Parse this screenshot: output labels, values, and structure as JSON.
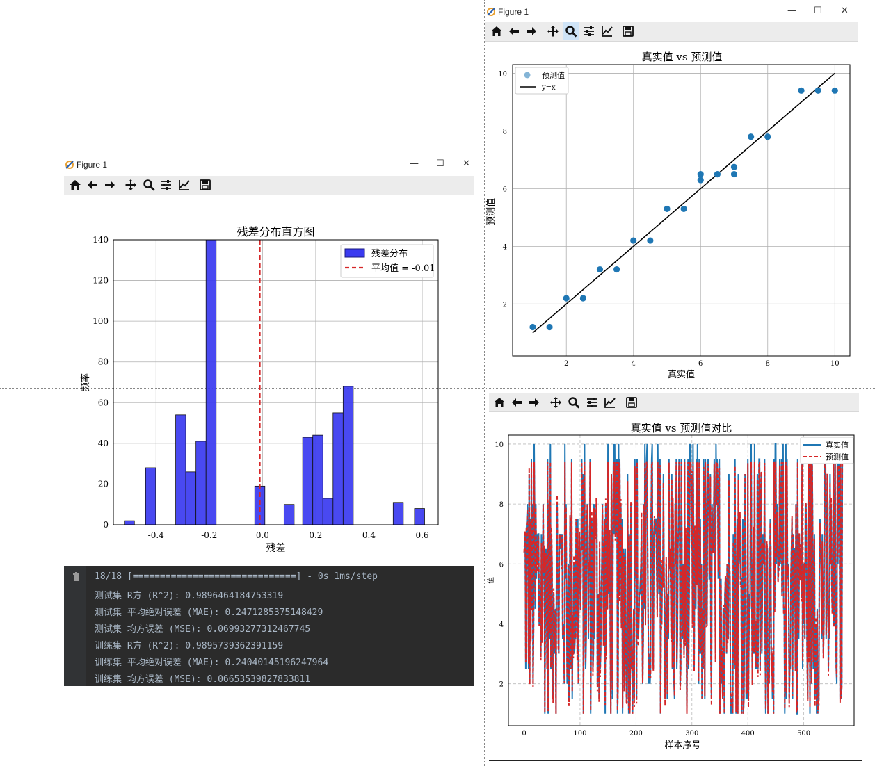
{
  "window1": {
    "title": "Figure 1",
    "toolbar": [
      "home-icon",
      "back-icon",
      "forward-icon",
      "pan-icon",
      "zoom-icon",
      "subplots-icon",
      "axes-edit-icon",
      "save-icon"
    ]
  },
  "window2": {
    "title": "Figure 1",
    "toolbar": [
      "home-icon",
      "back-icon",
      "forward-icon",
      "pan-icon",
      "zoom-icon",
      "subplots-icon",
      "axes-edit-icon",
      "save-icon"
    ]
  },
  "window3": {
    "toolbar": [
      "home-icon",
      "back-icon",
      "forward-icon",
      "pan-icon",
      "zoom-icon",
      "subplots-icon",
      "axes-edit-icon",
      "save-icon"
    ]
  },
  "window_controls": {
    "minimize": "—",
    "maximize": "☐",
    "close": "✕"
  },
  "colors": {
    "hist_bar": "#3a3af0",
    "mean_line": "#d62728",
    "scatter": "#1f77b4",
    "actual_line": "#1f77b4",
    "pred_line": "#d62728",
    "console_bg": "#2b2b2b"
  },
  "console": {
    "lines": [
      "18/18 [==============================] - 0s 1ms/step",
      "测试集 R方 (R^2): 0.9896464184753319",
      "测试集 平均绝对误差 (MAE): 0.2471285375148429",
      "测试集 均方误差 (MSE): 0.06993277312467745",
      "训练集 R方 (R^2): 0.9895739362391159",
      "训练集 平均绝对误差 (MAE): 0.24040145196247964",
      "训练集 均方误差 (MSE): 0.06653539827833811"
    ]
  },
  "chart_data": [
    {
      "type": "bar",
      "title": "残差分布直方图",
      "xlabel": "残差",
      "ylabel": "频率",
      "xlim": [
        -0.56,
        0.66
      ],
      "ylim": [
        0,
        140
      ],
      "xticks": [
        -0.4,
        -0.2,
        0.0,
        0.2,
        0.4,
        0.6
      ],
      "xtick_labels": [
        "-0.4",
        "-0.2",
        "0.0",
        "0.2",
        "0.4",
        "0.6"
      ],
      "yticks": [
        0,
        20,
        40,
        60,
        80,
        100,
        120,
        140
      ],
      "bar_width": 0.038,
      "bars": [
        {
          "x": -0.5,
          "value": 2
        },
        {
          "x": -0.42,
          "value": 28
        },
        {
          "x": -0.307,
          "value": 54
        },
        {
          "x": -0.269,
          "value": 26
        },
        {
          "x": -0.231,
          "value": 41
        },
        {
          "x": -0.193,
          "value": 140
        },
        {
          "x": -0.01,
          "value": 19
        },
        {
          "x": 0.1,
          "value": 10
        },
        {
          "x": 0.17,
          "value": 43
        },
        {
          "x": 0.208,
          "value": 44
        },
        {
          "x": 0.246,
          "value": 13
        },
        {
          "x": 0.284,
          "value": 55
        },
        {
          "x": 0.322,
          "value": 68
        },
        {
          "x": 0.51,
          "value": 11
        },
        {
          "x": 0.59,
          "value": 8
        }
      ],
      "mean": -0.01,
      "legend": [
        "残差分布",
        "平均值 = -0.01"
      ],
      "legend_position": "upper right",
      "grid": true
    },
    {
      "type": "scatter",
      "title": "真实值 vs 预测值",
      "xlabel": "真实值",
      "ylabel": "预测值",
      "xlim": [
        0.4,
        10.45
      ],
      "ylim": [
        0.2,
        10.3
      ],
      "xticks": [
        2,
        4,
        6,
        8,
        10
      ],
      "yticks": [
        2,
        4,
        6,
        8,
        10
      ],
      "points": [
        [
          1,
          1.2
        ],
        [
          1.5,
          1.2
        ],
        [
          2,
          2.2
        ],
        [
          2.5,
          2.2
        ],
        [
          3,
          3.2
        ],
        [
          3.5,
          3.2
        ],
        [
          4,
          4.2
        ],
        [
          4.5,
          4.2
        ],
        [
          5,
          5.3
        ],
        [
          5.5,
          5.3
        ],
        [
          6,
          6.3
        ],
        [
          6,
          6.5
        ],
        [
          6.5,
          6.5
        ],
        [
          7,
          6.5
        ],
        [
          7,
          6.75
        ],
        [
          7.5,
          7.8
        ],
        [
          8,
          7.8
        ],
        [
          9,
          9.4
        ],
        [
          9.5,
          9.4
        ],
        [
          10,
          9.4
        ]
      ],
      "reference_line": {
        "from": [
          1,
          1
        ],
        "to": [
          10,
          10
        ]
      },
      "legend": [
        "预测值",
        "y=x"
      ],
      "legend_position": "upper left",
      "grid": true
    },
    {
      "type": "line",
      "title": "真实值 vs 预测值对比",
      "xlabel": "样本序号",
      "ylabel": "值",
      "xlim": [
        -28,
        590
      ],
      "ylim": [
        0.6,
        10.3
      ],
      "xticks": [
        0,
        100,
        200,
        300,
        400,
        500
      ],
      "yticks": [
        2,
        4,
        6,
        8,
        10
      ],
      "n_samples": 570,
      "value_levels": [
        1,
        1.5,
        2,
        2.5,
        3,
        3.5,
        4,
        4.5,
        5,
        5.5,
        6,
        6.5,
        7,
        7.5,
        8,
        9,
        9.5,
        10
      ],
      "series": [
        {
          "name": "真实值",
          "style": "solid"
        },
        {
          "name": "预测值",
          "style": "dashed"
        }
      ],
      "legend_position": "upper right",
      "grid": true
    }
  ]
}
